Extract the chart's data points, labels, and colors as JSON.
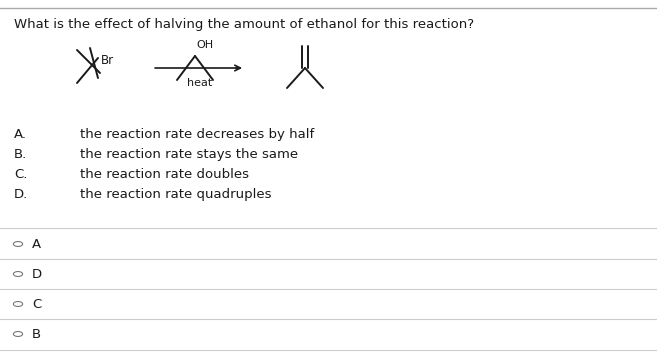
{
  "title": "What is the effect of halving the amount of ethanol for this reaction?",
  "background_color": "#ffffff",
  "border_color": "#bbbbbb",
  "options": [
    {
      "label": "A.",
      "text": "the reaction rate decreases by half"
    },
    {
      "label": "B.",
      "text": "the reaction rate stays the same"
    },
    {
      "label": "C.",
      "text": "the reaction rate doubles"
    },
    {
      "label": "D.",
      "text": "the reaction rate quadruples"
    }
  ],
  "answer_choices": [
    "A",
    "D",
    "C",
    "B"
  ],
  "text_color": "#1a1a1a",
  "line_color": "#cccccc",
  "font_size": 9.5,
  "answer_font_size": 9.5,
  "radio_color": "#777777",
  "top_border_color": "#aaaaaa"
}
